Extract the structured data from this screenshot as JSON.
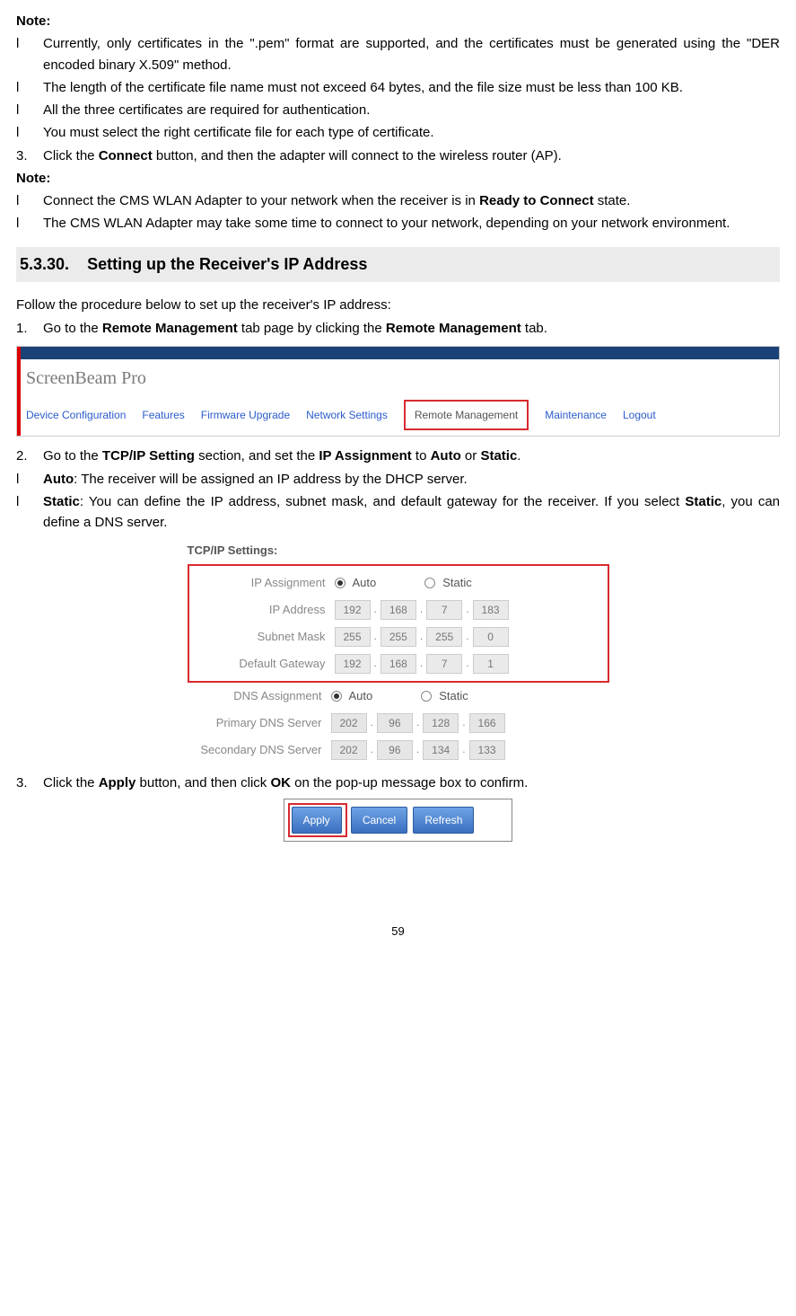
{
  "notes1": {
    "heading": "Note:",
    "items": [
      "Currently, only certificates in the \".pem\" format are supported, and the certificates must be generated using the \"DER encoded binary X.509\" method.",
      "The length of the certificate file name must not exceed 64 bytes, and the file size must be less than 100 KB.",
      "All the three certificates are required for authentication.",
      "You must select the right certificate file for each type of certificate."
    ]
  },
  "step3": {
    "num": "3.",
    "prefix": "Click the ",
    "bold": "Connect",
    "suffix": " button, and then the adapter will connect to the wireless router (AP)."
  },
  "notes2": {
    "heading": "Note:",
    "item1_pre": "Connect the CMS WLAN Adapter to your network when the receiver is in ",
    "item1_bold": "Ready to Connect",
    "item1_post": " state.",
    "item2": "The CMS WLAN Adapter may take some time to connect to your network, depending on your network environment."
  },
  "section": {
    "num": "5.3.30.",
    "title": "Setting up the Receiver's IP Address"
  },
  "intro": "Follow the procedure below to set up the receiver's IP address:",
  "procStep1": {
    "num": "1.",
    "pre": "Go to the ",
    "b1": "Remote Management",
    "mid": " tab page by clicking the ",
    "b2": "Remote Management",
    "post": " tab."
  },
  "nav": {
    "logo": "ScreenBeam Pro",
    "tabs": [
      "Device Configuration",
      "Features",
      "Firmware Upgrade",
      "Network Settings",
      "Remote Management",
      "Maintenance",
      "Logout"
    ],
    "activeIndex": 4
  },
  "procStep2": {
    "num": "2.",
    "pre": "Go to the ",
    "b1": "TCP/IP Setting",
    "mid1": " section, and set the ",
    "b2": "IP Assignment",
    "mid2": " to ",
    "b3": "Auto",
    "mid3": " or ",
    "b4": "Static",
    "post": "."
  },
  "autoItem": {
    "b": "Auto",
    "txt": ": The receiver will be assigned an IP address by the DHCP server."
  },
  "staticItem": {
    "b": "Static",
    "mid": ": You can define the IP address, subnet mask, and default gateway for the receiver. If you select ",
    "b2": "Static",
    "post": ", you can define a DNS server."
  },
  "tcpip": {
    "title": "TCP/IP Settings:",
    "rows": {
      "ipassign_label": "IP Assignment",
      "ipassign_auto": "Auto",
      "ipassign_static": "Static",
      "ipaddr_label": "IP Address",
      "ipaddr": [
        "192",
        "168",
        "7",
        "183"
      ],
      "subnet_label": "Subnet Mask",
      "subnet": [
        "255",
        "255",
        "255",
        "0"
      ],
      "gateway_label": "Default Gateway",
      "gateway": [
        "192",
        "168",
        "7",
        "1"
      ],
      "dnsassign_label": "DNS Assignment",
      "dnsassign_auto": "Auto",
      "dnsassign_static": "Static",
      "pdns_label": "Primary DNS Server",
      "pdns": [
        "202",
        "96",
        "128",
        "166"
      ],
      "sdns_label": "Secondary DNS Server",
      "sdns": [
        "202",
        "96",
        "134",
        "133"
      ]
    }
  },
  "procStep3": {
    "num": "3.",
    "pre": "Click the ",
    "b1": "Apply",
    "mid": " button, and then click ",
    "b2": "OK",
    "post": " on the pop-up message box to confirm."
  },
  "buttons": {
    "apply": "Apply",
    "cancel": "Cancel",
    "refresh": "Refresh"
  },
  "pageNumber": "59"
}
